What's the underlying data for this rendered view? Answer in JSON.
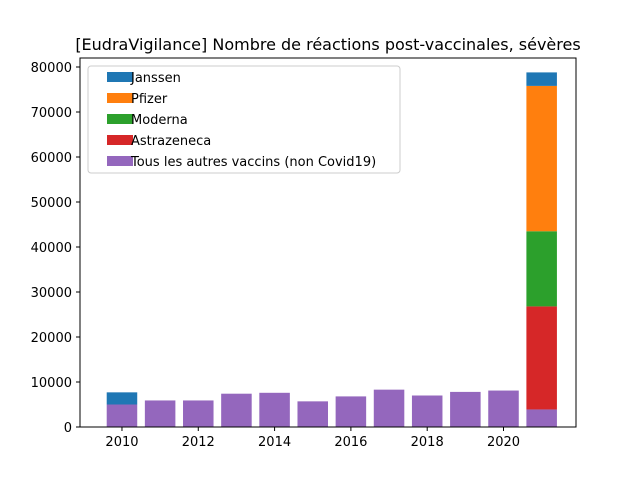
{
  "chart_data": {
    "type": "bar",
    "stacked": true,
    "title": "[EudraVigilance] Nombre de réactions post-vaccinales, sévères",
    "xlabel": "",
    "ylabel": "",
    "xlim": [
      2008.9,
      2021.9
    ],
    "ylim": [
      0,
      82000
    ],
    "x_ticks": [
      2010,
      2012,
      2014,
      2016,
      2018,
      2020
    ],
    "x_tick_labels": [
      "2010",
      "2012",
      "2014",
      "2016",
      "2018",
      "2020"
    ],
    "y_ticks": [
      0,
      10000,
      20000,
      30000,
      40000,
      50000,
      60000,
      70000,
      80000
    ],
    "y_tick_labels": [
      "0",
      "10000",
      "20000",
      "30000",
      "40000",
      "50000",
      "60000",
      "70000",
      "80000"
    ],
    "grid": false,
    "legend_position": "top-left",
    "x": [
      2010,
      2011,
      2012,
      2013,
      2014,
      2015,
      2016,
      2017,
      2018,
      2019,
      2020,
      2021
    ],
    "series": [
      {
        "name": "Tous les autres vaccins (non Covid19)",
        "color": "#9467bd",
        "values": [
          5000,
          5900,
          5900,
          7400,
          7600,
          5700,
          6800,
          8300,
          7000,
          7800,
          8100,
          3900
        ]
      },
      {
        "name": "Astrazeneca",
        "color": "#d62728",
        "values": [
          0,
          0,
          0,
          0,
          0,
          0,
          0,
          0,
          0,
          0,
          0,
          22900
        ]
      },
      {
        "name": "Moderna",
        "color": "#2ca02c",
        "values": [
          0,
          0,
          0,
          0,
          0,
          0,
          0,
          0,
          0,
          0,
          0,
          16700
        ]
      },
      {
        "name": "Pfizer",
        "color": "#ff7f0e",
        "values": [
          0,
          0,
          0,
          0,
          0,
          0,
          0,
          0,
          0,
          0,
          0,
          32300
        ]
      },
      {
        "name": "Janssen",
        "color": "#1f77b4",
        "values": [
          2700,
          0,
          0,
          0,
          0,
          0,
          0,
          0,
          0,
          0,
          0,
          3000
        ]
      }
    ],
    "legend_order": [
      "Janssen",
      "Pfizer",
      "Moderna",
      "Astrazeneca",
      "Tous les autres vaccins (non Covid19)"
    ]
  }
}
